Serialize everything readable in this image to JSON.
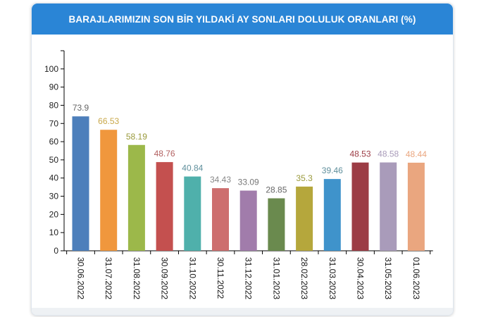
{
  "header": {
    "title": "BARAJLARIMIZIN SON BİR YILDAKİ AY SONLARI DOLULUK ORANLARI (%)"
  },
  "chart_data": {
    "type": "bar",
    "categories": [
      "30.06.2022",
      "31.07.2022",
      "31.08.2022",
      "30.09.2022",
      "31.10.2022",
      "30.11.2022",
      "31.12.2022",
      "31.01.2023",
      "28.02.2023",
      "31.03.2023",
      "30.04.2023",
      "31.05.2023",
      "01.06.2023"
    ],
    "values": [
      73.9,
      66.53,
      58.19,
      48.76,
      40.84,
      34.43,
      33.09,
      28.85,
      35.3,
      39.46,
      48.53,
      48.58,
      48.44
    ],
    "value_labels": [
      "73.9",
      "66.53",
      "58.19",
      "48.76",
      "40.84",
      "34.43",
      "33.09",
      "28.85",
      "35.3",
      "39.46",
      "48.53",
      "48.58",
      "48.44"
    ],
    "colors": [
      "#4d7fbb",
      "#f0973d",
      "#9cb84a",
      "#c4504f",
      "#4fb0ab",
      "#cd6e6e",
      "#a17cab",
      "#6a8a4e",
      "#b5a73c",
      "#3f93cb",
      "#9c3c45",
      "#a99bba",
      "#eaa67f"
    ],
    "label_colors": [
      "#666666",
      "#c9a84a",
      "#9a9a3c",
      "#b26060",
      "#5f8f9c",
      "#888888",
      "#777777",
      "#666666",
      "#9a9a3c",
      "#5f8f9c",
      "#9c3c45",
      "#a99bba",
      "#eaa67f"
    ],
    "y_ticks": [
      "0",
      "10",
      "20",
      "30",
      "40",
      "50",
      "60",
      "70",
      "80",
      "90",
      "100"
    ],
    "ylim": [
      0,
      110
    ],
    "xlabel": "",
    "ylabel": "",
    "grid": false,
    "legend": "none"
  }
}
